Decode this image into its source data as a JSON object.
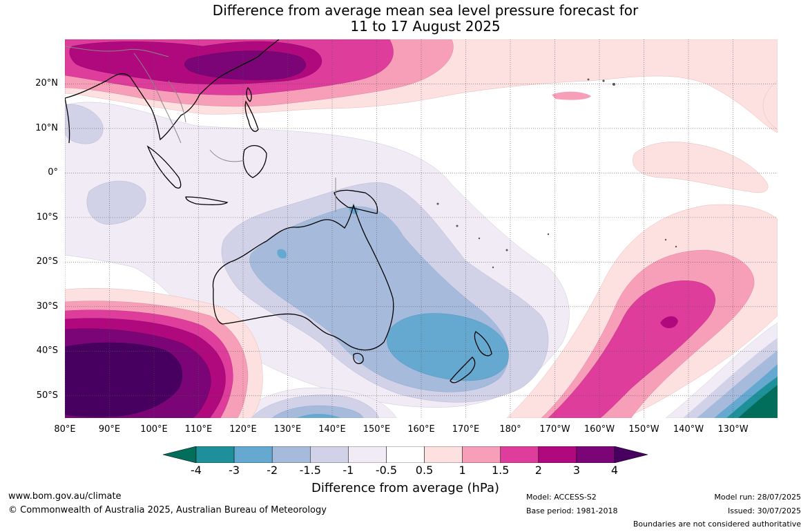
{
  "title": {
    "line1": "Difference from average mean sea level pressure forecast for",
    "line2": "11 to 17 August 2025"
  },
  "map": {
    "lat_labels": [
      "20°N",
      "10°N",
      "0°",
      "10°S",
      "20°S",
      "30°S",
      "40°S",
      "50°S"
    ],
    "lon_labels": [
      "80°E",
      "90°E",
      "100°E",
      "110°E",
      "120°E",
      "130°E",
      "140°E",
      "150°E",
      "160°E",
      "170°E",
      "180°",
      "170°W",
      "160°W",
      "150°W",
      "140°W",
      "130°W"
    ],
    "extent": {
      "lon_min": 80,
      "lon_max": 240,
      "lat_min": -55,
      "lat_max": 30
    }
  },
  "legend": {
    "title": "Difference from average (hPa)",
    "tick_labels": [
      "-4",
      "-3",
      "-2",
      "-1.5",
      "-1",
      "-0.5",
      "0.5",
      "1",
      "1.5",
      "2",
      "3",
      "4"
    ],
    "colors": [
      "#006e5a",
      "#1e9099",
      "#66a9d0",
      "#a6bbdc",
      "#d1d1e8",
      "#f1ebf5",
      "#ffffff",
      "#fde0e0",
      "#f79fb8",
      "#de3d9b",
      "#b0097e",
      "#7b0477",
      "#47005f"
    ]
  },
  "footer": {
    "website": "www.bom.gov.au/climate",
    "copyright": "© Commonwealth of Australia 2025, Australian Bureau of Meteorology",
    "model": "Model: ACCESS-S2",
    "base_period": "Base period: 1981-2018",
    "model_run": "Model run: 28/07/2025",
    "issued": "Issued: 30/07/2025",
    "disclaimer": "Boundaries are not considered authoritative"
  }
}
